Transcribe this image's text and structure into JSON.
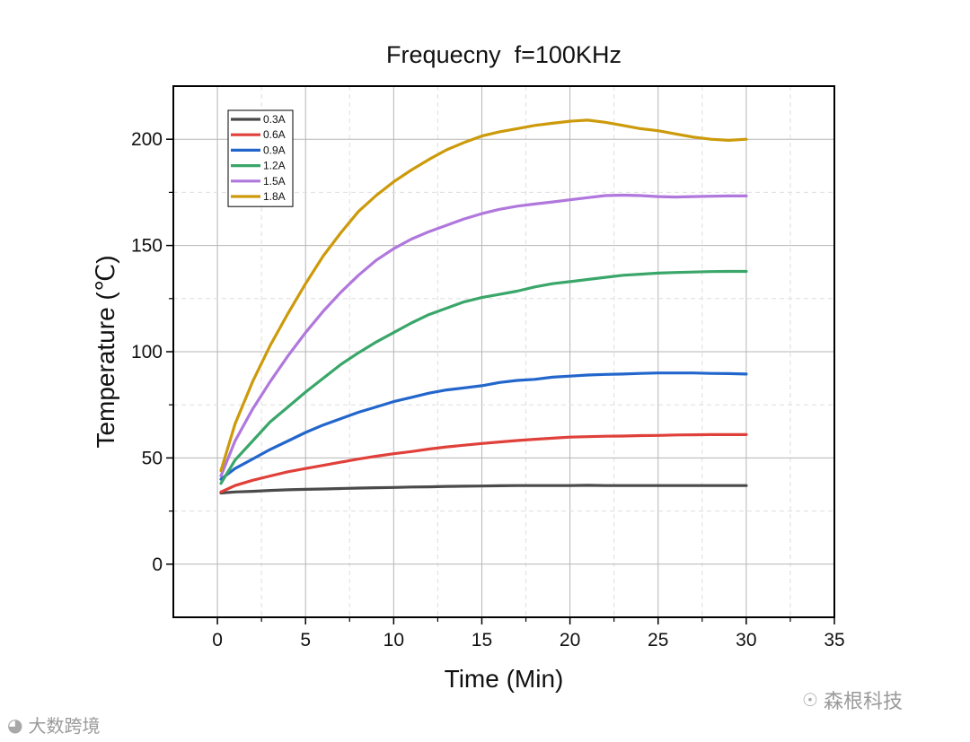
{
  "chart_data": {
    "type": "line",
    "title": "Frequecny  f=100KHz",
    "xlabel": "Time (Min)",
    "ylabel": "Temperature (℃)",
    "xlim": [
      -2.5,
      35
    ],
    "ylim": [
      -25,
      225
    ],
    "xticks": [
      "0",
      "5",
      "10",
      "15",
      "20",
      "25",
      "30",
      "35"
    ],
    "yticks": [
      "0",
      "50",
      "100",
      "150",
      "200"
    ],
    "grid": true,
    "legend_position": "top-left",
    "x": [
      0.2,
      1,
      2,
      3,
      4,
      5,
      6,
      7,
      8,
      9,
      10,
      11,
      12,
      13,
      14,
      15,
      16,
      17,
      18,
      19,
      20,
      21,
      22,
      23,
      24,
      25,
      26,
      27,
      28,
      29,
      30
    ],
    "series": [
      {
        "name": "0.3A",
        "color": "#4a4a4a",
        "values": [
          33.5,
          34,
          34.3,
          34.7,
          35,
          35.2,
          35.4,
          35.6,
          35.8,
          36,
          36.1,
          36.3,
          36.4,
          36.6,
          36.7,
          36.8,
          36.9,
          37,
          37,
          37,
          37,
          37.1,
          37,
          37,
          37,
          37,
          37,
          37,
          37,
          37,
          37
        ]
      },
      {
        "name": "0.6A",
        "color": "#e0403a",
        "values": [
          34,
          37,
          39.5,
          41.5,
          43.5,
          45,
          46.5,
          48,
          49.5,
          50.8,
          52,
          53,
          54.2,
          55.2,
          56,
          56.8,
          57.5,
          58.2,
          58.8,
          59.3,
          59.8,
          60,
          60.2,
          60.3,
          60.5,
          60.6,
          60.8,
          60.9,
          61,
          61,
          61
        ]
      },
      {
        "name": "0.9A",
        "color": "#2266cc",
        "values": [
          40,
          45,
          49.5,
          54,
          58,
          62,
          65.5,
          68.5,
          71.5,
          74,
          76.5,
          78.5,
          80.5,
          82,
          83,
          84,
          85.5,
          86.5,
          87,
          88,
          88.5,
          89,
          89.3,
          89.5,
          89.8,
          90,
          90,
          90,
          89.8,
          89.7,
          89.5
        ]
      },
      {
        "name": "1.2A",
        "color": "#3aa66a",
        "values": [
          38,
          49,
          58,
          67,
          74,
          81,
          87.5,
          94,
          99.5,
          104.5,
          109,
          113.5,
          117.5,
          120.5,
          123.5,
          125.5,
          127,
          128.5,
          130.5,
          132,
          133,
          134,
          135,
          136,
          136.5,
          137,
          137.3,
          137.5,
          137.7,
          137.8,
          137.8
        ]
      },
      {
        "name": "1.5A",
        "color": "#b077dd",
        "values": [
          41.5,
          58,
          73,
          86,
          98,
          109,
          119,
          128,
          136,
          143,
          148.5,
          153,
          156.5,
          159.5,
          162.5,
          165,
          167,
          168.5,
          169.5,
          170.5,
          171.5,
          172.5,
          173.5,
          173.7,
          173.5,
          173,
          172.8,
          173,
          173.2,
          173.3,
          173.3
        ]
      },
      {
        "name": "1.8A",
        "color": "#cc9a0a",
        "values": [
          44,
          66,
          86,
          103,
          118,
          132,
          145,
          156,
          166,
          173.5,
          180,
          185.5,
          190.5,
          195,
          198.5,
          201.5,
          203.5,
          205,
          206.5,
          207.5,
          208.5,
          209,
          208,
          206.5,
          205,
          204,
          202.5,
          201,
          200,
          199.5,
          200
        ]
      }
    ]
  },
  "watermarks": {
    "right_text": "森根科技",
    "left_text": "大数跨境",
    "right_icon": "wechat-icon",
    "left_icon": "weibo-icon"
  }
}
